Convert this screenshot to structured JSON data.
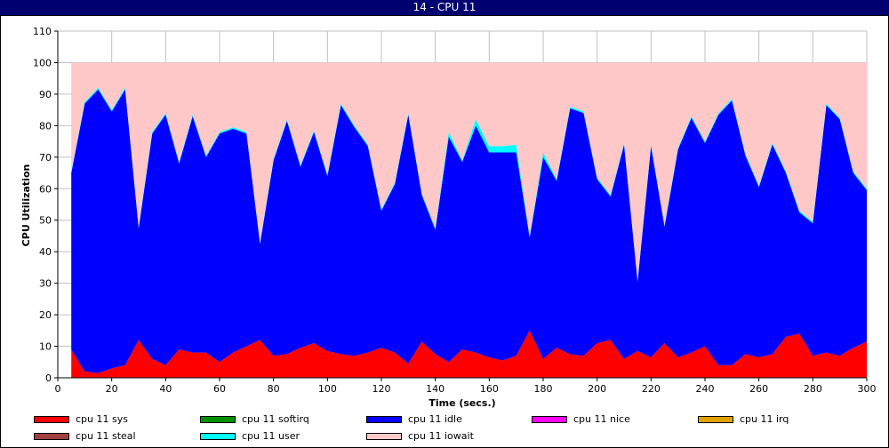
{
  "window": {
    "title": "14 - CPU 11"
  },
  "chart_data": {
    "type": "area",
    "stacked": true,
    "xlabel": "Time (secs.)",
    "ylabel": "CPU Utilization",
    "xlim": [
      0,
      300
    ],
    "ylim": [
      0,
      110
    ],
    "xticks": [
      0,
      20,
      40,
      60,
      80,
      100,
      120,
      140,
      160,
      180,
      200,
      220,
      240,
      260,
      280,
      300
    ],
    "yticks": [
      0,
      10,
      20,
      30,
      40,
      50,
      60,
      70,
      80,
      90,
      100,
      110
    ],
    "grid": true,
    "legend_position": "bottom",
    "x": [
      5,
      10,
      15,
      20,
      25,
      30,
      35,
      40,
      45,
      50,
      55,
      60,
      65,
      70,
      75,
      80,
      85,
      90,
      95,
      100,
      105,
      110,
      115,
      120,
      125,
      130,
      135,
      140,
      145,
      150,
      155,
      160,
      165,
      170,
      175,
      180,
      185,
      190,
      195,
      200,
      205,
      210,
      215,
      220,
      225,
      230,
      235,
      240,
      245,
      250,
      255,
      260,
      265,
      270,
      275,
      280,
      285,
      290,
      295,
      300
    ],
    "series": [
      {
        "name": "cpu 11 sys",
        "color": "#ff0000",
        "values": [
          9,
          2,
          1.5,
          3,
          4,
          12,
          6,
          4,
          9,
          8,
          8,
          5,
          8,
          10,
          12,
          7,
          7.5,
          9.5,
          11,
          8.5,
          7.5,
          7,
          8,
          9.5,
          8,
          4.5,
          11.5,
          7.5,
          5,
          9,
          8,
          6.5,
          5.5,
          7,
          15,
          6,
          9.5,
          7.5,
          7,
          11,
          12,
          6,
          8.5,
          6.5,
          11,
          6.5,
          8,
          10,
          4,
          4,
          7.5,
          6.5,
          7.5,
          13,
          14,
          7,
          8,
          7,
          9.5,
          11.5
        ]
      },
      {
        "name": "cpu 11 softirq",
        "color": "#009000",
        "values": [
          0,
          0,
          0,
          0,
          0,
          0,
          0,
          0,
          0,
          0,
          0,
          0,
          0,
          0,
          0,
          0,
          0,
          0,
          0,
          0,
          0,
          0,
          0,
          0,
          0,
          0,
          0,
          0,
          0,
          0,
          0,
          0,
          0,
          0,
          0,
          0,
          0,
          0,
          0,
          0,
          0,
          0,
          0,
          0,
          0,
          0,
          0,
          0,
          0,
          0,
          0,
          0,
          0,
          0,
          0,
          0,
          0,
          0,
          0,
          0
        ]
      },
      {
        "name": "cpu 11 idle",
        "color": "#0000ff",
        "values": [
          56,
          85,
          90,
          81.5,
          87.5,
          35.5,
          71.5,
          79.5,
          59,
          75,
          62,
          72.5,
          71,
          67.5,
          30.5,
          62,
          74,
          57.5,
          67,
          55.5,
          79,
          72.5,
          65.5,
          43.5,
          53.5,
          79,
          46.5,
          39.5,
          71.5,
          59.5,
          72,
          65,
          66,
          64.5,
          29.5,
          64,
          53,
          78,
          77,
          52,
          45.5,
          68,
          22,
          67,
          37,
          66,
          74.5,
          64.5,
          79.5,
          84,
          63,
          54,
          66.5,
          52,
          38.5,
          42,
          78.5,
          75,
          55.5,
          48
        ]
      },
      {
        "name": "cpu 11 nice",
        "color": "#ff00ff",
        "values": [
          0,
          0,
          0,
          0,
          0,
          0,
          0,
          0,
          0,
          0,
          0,
          0,
          0,
          0,
          0,
          0,
          0,
          0,
          0,
          0,
          0,
          0,
          0,
          0,
          0,
          0,
          0,
          0,
          0,
          0,
          0,
          0,
          0,
          0,
          0,
          0,
          0,
          0,
          0,
          0,
          0,
          0,
          0,
          0,
          0,
          0,
          0,
          0,
          0,
          0,
          0,
          0,
          0,
          0,
          0,
          0,
          0,
          0,
          0,
          0
        ]
      },
      {
        "name": "cpu 11 irq",
        "color": "#e0a000",
        "values": [
          0,
          0,
          0,
          0,
          0,
          0,
          0,
          0,
          0,
          0,
          0,
          0,
          0,
          0,
          0,
          0,
          0,
          0,
          0,
          0,
          0,
          0,
          0,
          0,
          0,
          0,
          0,
          0,
          0,
          0,
          0,
          0,
          0,
          0,
          0,
          0,
          0,
          0,
          0,
          0,
          0,
          0,
          0,
          0,
          0,
          0,
          0,
          0,
          0,
          0,
          0,
          0,
          0,
          0,
          0,
          0,
          0,
          0,
          0,
          0
        ]
      },
      {
        "name": "cpu 11 steal",
        "color": "#a04040",
        "values": [
          0,
          0,
          0,
          0,
          0,
          0,
          0,
          0,
          0,
          0,
          0,
          0,
          0,
          0,
          0,
          0,
          0,
          0,
          0,
          0,
          0,
          0,
          0,
          0,
          0,
          0,
          0,
          0,
          0,
          0,
          0,
          0,
          0,
          0,
          0,
          0,
          0,
          0,
          0,
          0,
          0,
          0,
          0,
          0,
          0,
          0,
          0,
          0,
          0,
          0,
          0,
          0,
          0,
          0,
          0,
          0,
          0,
          0,
          0,
          0
        ]
      },
      {
        "name": "cpu 11 user",
        "color": "#00ffff",
        "values": [
          0.5,
          0.5,
          0.5,
          0.5,
          0.5,
          0.5,
          0.5,
          0.5,
          0.5,
          0.5,
          0.5,
          0.5,
          0.5,
          0.5,
          0.5,
          0.5,
          0.5,
          0.5,
          0.5,
          0.5,
          0.5,
          0.5,
          0.5,
          0.5,
          0.5,
          0.5,
          0.5,
          0.5,
          1.5,
          0.5,
          2,
          2,
          2,
          2.5,
          0.5,
          1.5,
          0.5,
          0.5,
          0.5,
          0.5,
          0.5,
          0.5,
          0.5,
          0.5,
          0.5,
          0.5,
          0.5,
          0.5,
          0.5,
          0.5,
          0.5,
          0.5,
          0.5,
          0.5,
          0.5,
          0.5,
          0.5,
          0.5,
          0.5,
          0.5
        ]
      },
      {
        "name": "cpu 11 iowait",
        "color": "#ffc8c8",
        "values": [
          34.5,
          12.5,
          8,
          15,
          8,
          52,
          22,
          16,
          31.5,
          16.5,
          29.5,
          22,
          20.5,
          22,
          57,
          30.5,
          18,
          32.5,
          21.5,
          35.5,
          13,
          20,
          26,
          46.5,
          38,
          16,
          41.5,
          52.5,
          22,
          31,
          18,
          26.5,
          26.5,
          26,
          55,
          28.5,
          37,
          14,
          15.5,
          36.5,
          42,
          25.5,
          69,
          26,
          51.5,
          27,
          17,
          25,
          16,
          11.5,
          29,
          39,
          25.5,
          34.5,
          47,
          50.5,
          13,
          17.5,
          34.5,
          40
        ]
      }
    ]
  }
}
